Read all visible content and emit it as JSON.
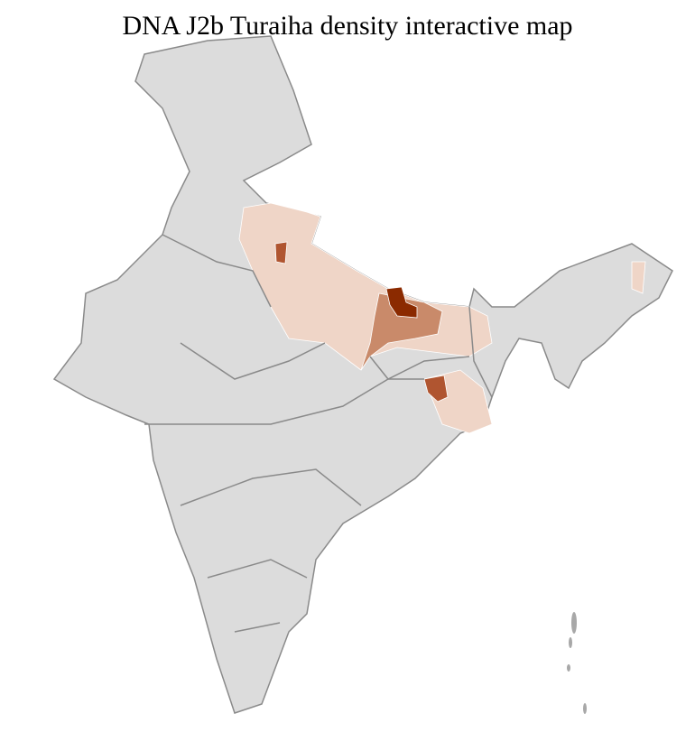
{
  "title": "DNA J2b Turaiha density interactive map",
  "map": {
    "region": "India districts",
    "colors": {
      "base": "#dcdcdc",
      "border_state": "#8a8a8a",
      "border_district": "#ffffff",
      "low": "#efd5c7",
      "medium": "#c98a6a",
      "high": "#b05530",
      "highest": "#8b2a00"
    }
  }
}
